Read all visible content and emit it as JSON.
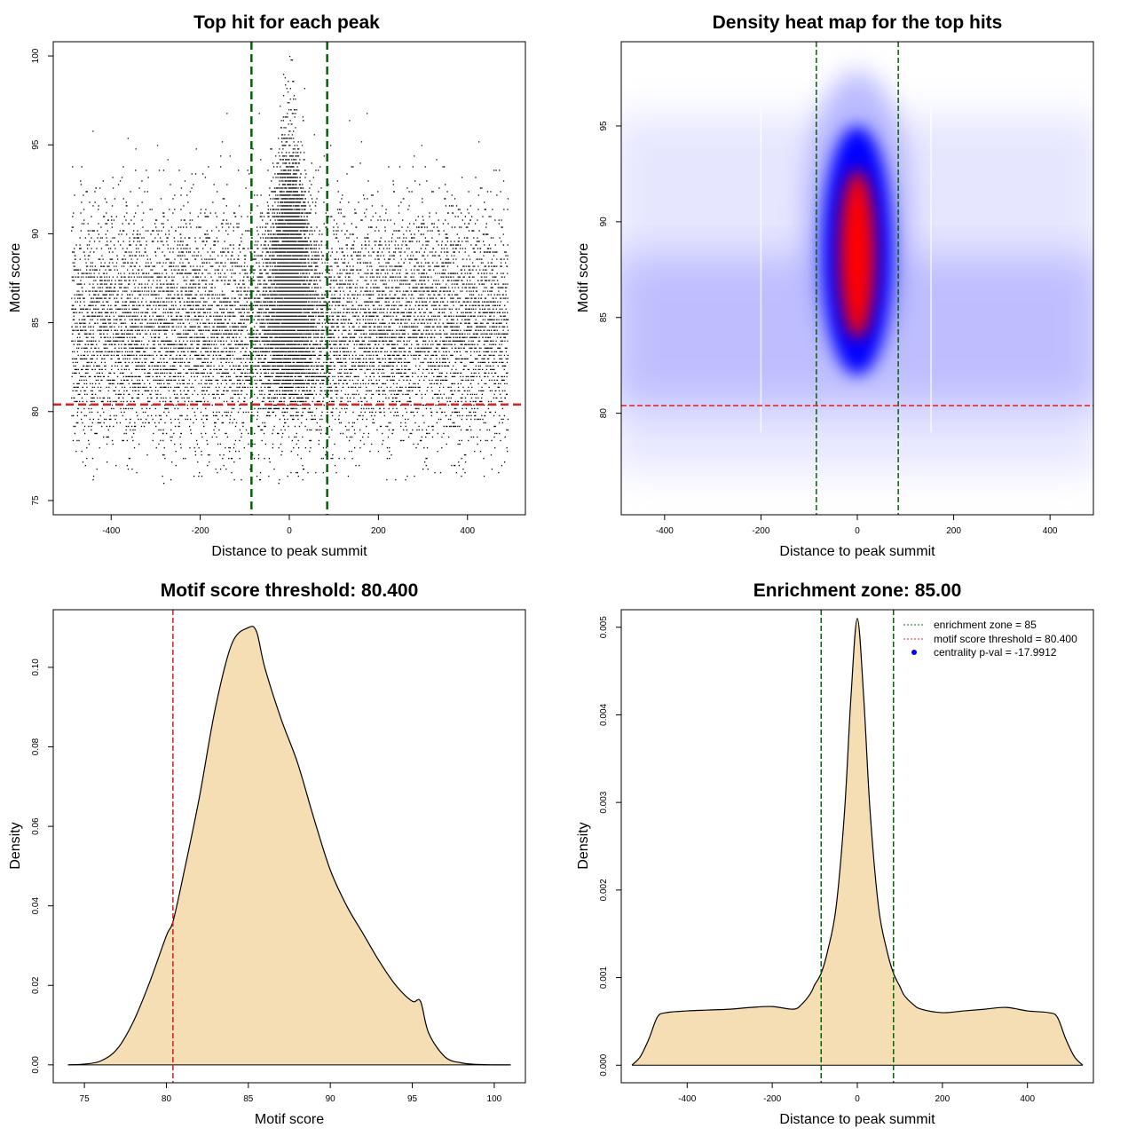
{
  "chart_data": [
    {
      "id": "scatter",
      "type": "scatter",
      "title": "Top hit for each peak",
      "xlabel": "Distance to peak summit",
      "ylabel": "Motif score",
      "xlim": [
        -530,
        530
      ],
      "ylim": [
        74.2,
        100.8
      ],
      "xticks": [
        -400,
        -200,
        0,
        200,
        400
      ],
      "yticks": [
        75,
        80,
        85,
        90,
        95,
        100
      ],
      "vlines": [
        {
          "x": -85,
          "color": "#006400",
          "style": "dashed"
        },
        {
          "x": 85,
          "color": "#006400",
          "style": "dashed"
        }
      ],
      "hlines": [
        {
          "y": 80.4,
          "color": "#e02020",
          "style": "dashed"
        }
      ],
      "points": {
        "background": {
          "x_range": [
            -490,
            490
          ],
          "y_mean": 84.8,
          "y_sd": 3.2,
          "y_range": [
            76,
            97
          ],
          "approx_count": 11000
        },
        "central": {
          "x_center": 0,
          "x_sd": 28,
          "y_range": [
            80,
            100
          ],
          "y_mode": 87,
          "approx_count": 5000
        }
      }
    },
    {
      "id": "heatmap",
      "type": "heatmap",
      "title": "Density heat map for the top hits",
      "xlabel": "Distance to peak summit",
      "ylabel": "Motif score",
      "xlim": [
        -490,
        490
      ],
      "ylim": [
        74.7,
        99.4
      ],
      "xticks": [
        -400,
        -200,
        0,
        200,
        400
      ],
      "yticks": [
        80,
        85,
        90,
        95
      ],
      "vlines": [
        {
          "x": -85,
          "color": "#006400",
          "style": "dashed"
        },
        {
          "x": 85,
          "color": "#006400",
          "style": "dashed"
        }
      ],
      "hlines": [
        {
          "y": 80.4,
          "color": "#e02020",
          "style": "dashed"
        }
      ],
      "density": {
        "background_band_center": 84.3,
        "peak_center": [
          0,
          88.5
        ],
        "peak_y_range": [
          82,
          97
        ]
      },
      "colors": [
        "#ffffff",
        "#0000ff",
        "#ff0000"
      ]
    },
    {
      "id": "scoredensity",
      "type": "area",
      "title": "Motif score threshold: 80.400",
      "xlabel": "Motif score",
      "ylabel": "Density",
      "xlim": [
        73.1,
        101.9
      ],
      "ylim": [
        -0.0045,
        0.1145
      ],
      "xticks": [
        75,
        80,
        85,
        90,
        95,
        100
      ],
      "yticks": [
        0.0,
        0.02,
        0.04,
        0.06,
        0.08,
        0.1
      ],
      "ytick_labels": [
        "0.00",
        "0.02",
        "0.04",
        "0.06",
        "0.08",
        "0.10"
      ],
      "x": [
        74,
        75,
        76,
        77,
        78,
        79,
        80,
        80.4,
        81,
        82,
        83,
        84,
        85,
        85.5,
        86,
        87,
        88,
        89,
        90,
        91,
        92,
        93,
        94,
        95,
        95.5,
        96,
        97,
        98,
        99,
        100,
        101
      ],
      "y": [
        0.0,
        0.0002,
        0.001,
        0.004,
        0.011,
        0.021,
        0.0325,
        0.036,
        0.047,
        0.067,
        0.09,
        0.106,
        0.11,
        0.109,
        0.1,
        0.087,
        0.076,
        0.062,
        0.049,
        0.04,
        0.033,
        0.026,
        0.02,
        0.016,
        0.016,
        0.008,
        0.002,
        0.0005,
        0.0001,
        0.0,
        0.0
      ],
      "vlines": [
        {
          "x": 80.4,
          "color": "#d02020",
          "style": "dashed"
        }
      ],
      "fill": "#f5deb3"
    },
    {
      "id": "distdensity",
      "type": "area",
      "title": "Enrichment zone: 85.00",
      "xlabel": "Distance to peak summit",
      "ylabel": "Density",
      "xlim": [
        -555,
        555
      ],
      "ylim": [
        -0.0002,
        0.0052
      ],
      "xticks": [
        -400,
        -200,
        0,
        200,
        400
      ],
      "yticks": [
        0.0,
        0.001,
        0.002,
        0.003,
        0.004,
        0.005
      ],
      "ytick_labels": [
        "0.000",
        "0.001",
        "0.002",
        "0.003",
        "0.004",
        "0.005"
      ],
      "x": [
        -530,
        -510,
        -490,
        -470,
        -450,
        -400,
        -350,
        -300,
        -250,
        -200,
        -150,
        -130,
        -110,
        -100,
        -85,
        -70,
        -50,
        -30,
        -15,
        0,
        15,
        30,
        50,
        70,
        85,
        100,
        110,
        130,
        150,
        200,
        250,
        300,
        350,
        400,
        450,
        470,
        490,
        510,
        530
      ],
      "y": [
        0.0,
        0.0001,
        0.0003,
        0.00055,
        0.0006,
        0.00062,
        0.00063,
        0.00064,
        0.00066,
        0.00067,
        0.00064,
        0.0007,
        0.00082,
        0.00092,
        0.00105,
        0.0013,
        0.0018,
        0.0029,
        0.0042,
        0.0051,
        0.0042,
        0.0029,
        0.0018,
        0.0013,
        0.00105,
        0.0009,
        0.0008,
        0.0007,
        0.00064,
        0.0006,
        0.00062,
        0.00064,
        0.00066,
        0.00062,
        0.0006,
        0.00055,
        0.0003,
        0.0001,
        0.0
      ],
      "vlines": [
        {
          "x": -85,
          "color": "#006400",
          "style": "dashed"
        },
        {
          "x": 85,
          "color": "#006400",
          "style": "dashed"
        }
      ],
      "fill": "#f5deb3",
      "legend": {
        "placement": "top-right",
        "entries": [
          {
            "label": "enrichment zone = 85",
            "color": "#006400",
            "marker": "dotted-line"
          },
          {
            "label": "motif score threshold = 80.400",
            "color": "#e02020",
            "marker": "dotted-line"
          },
          {
            "label": "centrality p-val = -17.9912",
            "color": "#0000ff",
            "marker": "dot"
          }
        ]
      }
    }
  ]
}
